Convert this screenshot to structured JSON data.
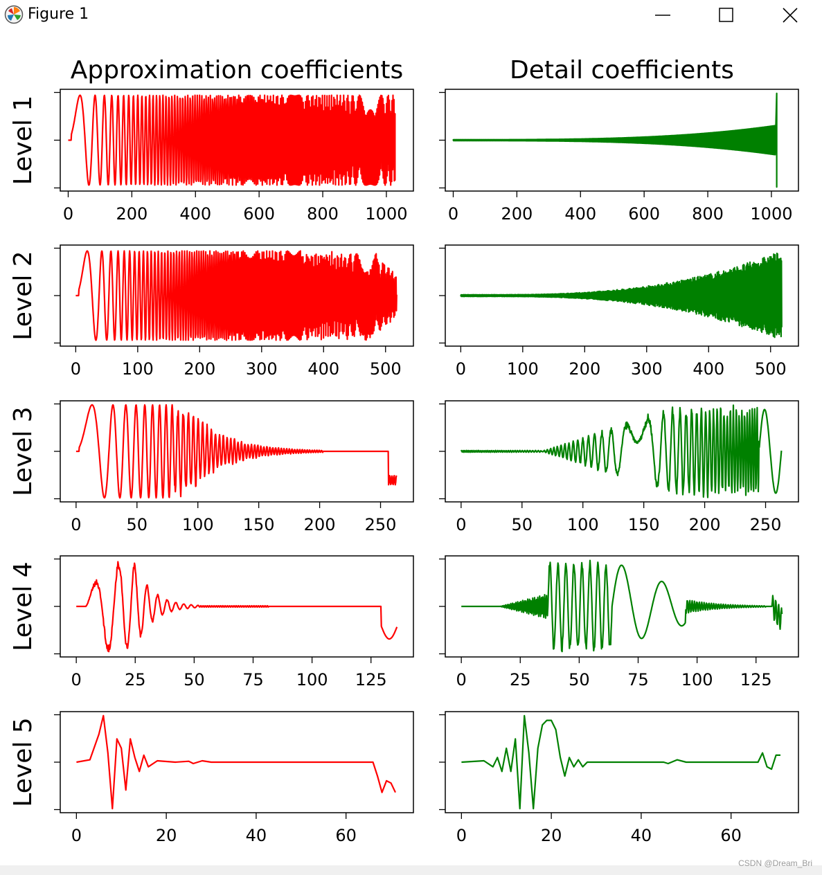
{
  "window": {
    "title": "Figure 1",
    "icon": "matplotlib-logo-icon",
    "controls": [
      "minimize-icon",
      "maximize-icon",
      "close-icon"
    ]
  },
  "watermark": "CSDN @Dream_Bri",
  "colors": {
    "approx": "#ff0000",
    "detail": "#008000"
  },
  "chart_data": [
    {
      "type": "line",
      "title": "Approximation coefficients",
      "ylabel": "Level 1",
      "series": [
        {
          "name": "approximation",
          "color": "#ff0000"
        }
      ],
      "xlim": [
        -25,
        1085
      ],
      "xticks": [
        0,
        200,
        400,
        600,
        800,
        1000
      ],
      "shape": "approx1"
    },
    {
      "type": "line",
      "title": "Detail coefficients",
      "ylabel": "",
      "series": [
        {
          "name": "detail",
          "color": "#008000"
        }
      ],
      "xlim": [
        -25,
        1085
      ],
      "xticks": [
        0,
        200,
        400,
        600,
        800,
        1000
      ],
      "shape": "detail1"
    },
    {
      "type": "line",
      "title": "",
      "ylabel": "Level 2",
      "series": [
        {
          "name": "approximation",
          "color": "#ff0000"
        }
      ],
      "xlim": [
        -25,
        545
      ],
      "xticks": [
        0,
        100,
        200,
        300,
        400,
        500
      ],
      "shape": "approx2"
    },
    {
      "type": "line",
      "title": "",
      "ylabel": "",
      "series": [
        {
          "name": "detail",
          "color": "#008000"
        }
      ],
      "xlim": [
        -25,
        545
      ],
      "xticks": [
        0,
        100,
        200,
        300,
        400,
        500
      ],
      "shape": "detail2"
    },
    {
      "type": "line",
      "title": "",
      "ylabel": "Level 3",
      "series": [
        {
          "name": "approximation",
          "color": "#ff0000"
        }
      ],
      "xlim": [
        -13,
        277
      ],
      "xticks": [
        0,
        50,
        100,
        150,
        200,
        250
      ],
      "shape": "approx3"
    },
    {
      "type": "line",
      "title": "",
      "ylabel": "",
      "series": [
        {
          "name": "detail",
          "color": "#008000"
        }
      ],
      "xlim": [
        -13,
        277
      ],
      "xticks": [
        0,
        50,
        100,
        150,
        200,
        250
      ],
      "shape": "detail3"
    },
    {
      "type": "line",
      "title": "",
      "ylabel": "Level 4",
      "series": [
        {
          "name": "approximation",
          "color": "#ff0000"
        }
      ],
      "xlim": [
        -6.8,
        143
      ],
      "xticks": [
        0,
        25,
        50,
        75,
        100,
        125
      ],
      "shape": "approx4"
    },
    {
      "type": "line",
      "title": "",
      "ylabel": "",
      "series": [
        {
          "name": "detail",
          "color": "#008000"
        }
      ],
      "xlim": [
        -6.8,
        143
      ],
      "xticks": [
        0,
        25,
        50,
        75,
        100,
        125
      ],
      "shape": "detail4"
    },
    {
      "type": "line",
      "title": "",
      "ylabel": "Level 5",
      "series": [
        {
          "name": "approximation",
          "color": "#ff0000"
        }
      ],
      "xlim": [
        -3.6,
        75
      ],
      "xticks": [
        0,
        20,
        40,
        60
      ],
      "shape": "approx5"
    },
    {
      "type": "line",
      "title": "",
      "ylabel": "",
      "series": [
        {
          "name": "detail",
          "color": "#008000"
        }
      ],
      "xlim": [
        -3.6,
        75
      ],
      "xticks": [
        0,
        20,
        40,
        60
      ],
      "shape": "detail5"
    }
  ]
}
